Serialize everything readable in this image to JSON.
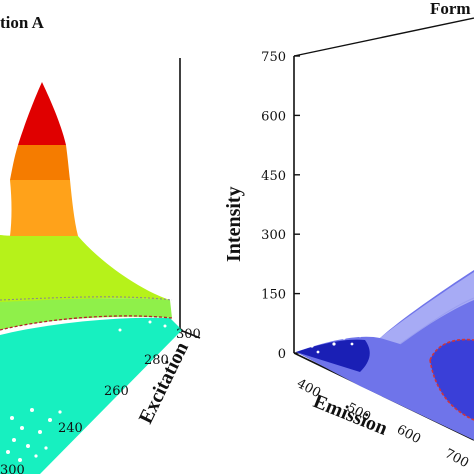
{
  "chart_data": [
    {
      "type": "surface",
      "title": "tion A",
      "xlabel": "Excitation",
      "excitation_ticks": [
        "240",
        "260",
        "280",
        "300"
      ],
      "bottom_left_tick": "300",
      "surface_levels_colors": [
        "#17f0c0",
        "#b6f21a",
        "#ffa21a",
        "#f57c00",
        "#e00000"
      ]
    },
    {
      "type": "surface",
      "title": "Form",
      "zlabel": "Intensity",
      "xlabel": "Emission",
      "intensity_ticks": [
        0,
        150,
        300,
        450,
        600,
        750
      ],
      "zlim": [
        0,
        750
      ],
      "emission_ticks": [
        "400",
        "500",
        "600",
        "700"
      ],
      "surface_colors": [
        "#3a3fd8",
        "#6f74ea",
        "#a7abf5",
        "#1a1fb5"
      ]
    }
  ]
}
